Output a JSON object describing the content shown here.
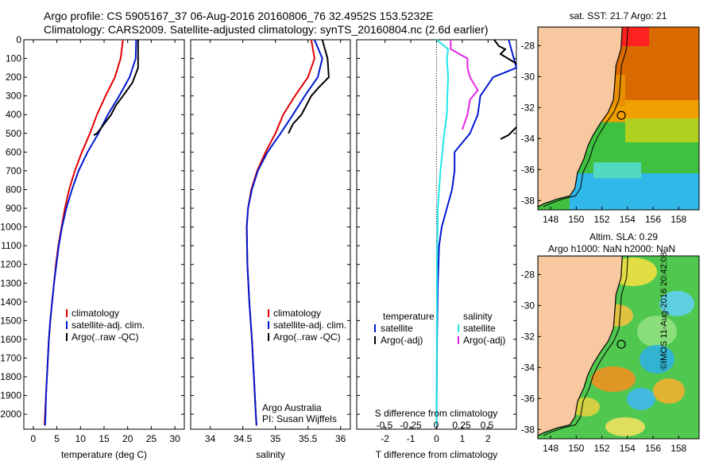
{
  "header": {
    "line1": "Argo profile: CS 5905167_37 06-Aug-2016 20160806_76 32.4952S 153.5232E",
    "line2": "Climatology: CARS2009. Satellite-adjusted climatology: synTS_20160804.nc (2.6d earlier)"
  },
  "colors": {
    "climatology": "#e00000",
    "satellite": "#0018d0",
    "argo": "#000000",
    "s_satellite": "#22e6e6",
    "s_argo": "#e626e6"
  },
  "shared_y": {
    "range": [
      0,
      2080
    ],
    "ticks": [
      0,
      100,
      200,
      300,
      400,
      500,
      600,
      700,
      800,
      900,
      1000,
      1100,
      1200,
      1300,
      1400,
      1500,
      1600,
      1700,
      1800,
      1900,
      2000
    ]
  },
  "chart_data": [
    {
      "type": "line",
      "xlabel": "temperature (deg C)",
      "xlim": [
        -2,
        32
      ],
      "xticks": [
        0,
        5,
        10,
        15,
        20,
        25,
        30
      ],
      "legend": [
        "climatology",
        "satellite-adj. clim.",
        "Argo(..raw -QC)"
      ],
      "series": [
        {
          "name": "climatology",
          "points": [
            [
              19,
              0
            ],
            [
              18.5,
              100
            ],
            [
              17.3,
              200
            ],
            [
              15.3,
              300
            ],
            [
              13.5,
              400
            ],
            [
              12,
              500
            ],
            [
              10.3,
              600
            ],
            [
              8.8,
              700
            ],
            [
              7.6,
              800
            ],
            [
              6.7,
              900
            ],
            [
              6,
              1000
            ],
            [
              5.3,
              1100
            ],
            [
              4.8,
              1200
            ],
            [
              4.4,
              1300
            ],
            [
              4,
              1400
            ],
            [
              3.6,
              1500
            ],
            [
              3.3,
              1600
            ],
            [
              3.1,
              1700
            ],
            [
              2.9,
              1800
            ],
            [
              2.7,
              1900
            ],
            [
              2.5,
              2000
            ],
            [
              2.4,
              2060
            ]
          ]
        },
        {
          "name": "satellite-adj. clim.",
          "points": [
            [
              21.8,
              0
            ],
            [
              21.7,
              100
            ],
            [
              20.4,
              200
            ],
            [
              18.2,
              300
            ],
            [
              15.8,
              400
            ],
            [
              13.8,
              500
            ],
            [
              11.5,
              600
            ],
            [
              9.6,
              700
            ],
            [
              8.2,
              800
            ],
            [
              7,
              900
            ],
            [
              6.1,
              1000
            ],
            [
              5.4,
              1100
            ],
            [
              4.9,
              1200
            ],
            [
              4.4,
              1300
            ],
            [
              4,
              1400
            ],
            [
              3.6,
              1500
            ],
            [
              3.3,
              1600
            ],
            [
              3.1,
              1700
            ],
            [
              2.9,
              1800
            ],
            [
              2.7,
              1900
            ],
            [
              2.6,
              2000
            ],
            [
              2.5,
              2060
            ]
          ]
        },
        {
          "name": "Argo(..raw -QC)",
          "points": [
            [
              22.2,
              0
            ],
            [
              22.2,
              150
            ],
            [
              21,
              230
            ],
            [
              19,
              300
            ],
            [
              17.5,
              350
            ],
            [
              16.5,
              400
            ],
            [
              15,
              450
            ],
            [
              13.5,
              500
            ],
            [
              12.8,
              510
            ]
          ]
        }
      ]
    },
    {
      "type": "line",
      "xlabel": "salinity",
      "xlim": [
        33.7,
        36.15
      ],
      "xticks": [
        34,
        34.5,
        35,
        35.5,
        36
      ],
      "legend": [
        "climatology",
        "satellite-adj. clim.",
        "Argo(..raw -QC)"
      ],
      "annotation": [
        "Argo Australia",
        "PI: Susan Wijffels"
      ],
      "series": [
        {
          "name": "climatology",
          "points": [
            [
              35.55,
              0
            ],
            [
              35.6,
              100
            ],
            [
              35.5,
              200
            ],
            [
              35.3,
              300
            ],
            [
              35.12,
              400
            ],
            [
              35,
              500
            ],
            [
              34.85,
              600
            ],
            [
              34.72,
              700
            ],
            [
              34.63,
              800
            ],
            [
              34.58,
              900
            ],
            [
              34.56,
              1000
            ],
            [
              34.57,
              1200
            ],
            [
              34.6,
              1400
            ],
            [
              34.64,
              1600
            ],
            [
              34.67,
              1800
            ],
            [
              34.7,
              2000
            ],
            [
              34.71,
              2060
            ]
          ]
        },
        {
          "name": "satellite-adj. clim.",
          "points": [
            [
              35.6,
              0
            ],
            [
              35.72,
              100
            ],
            [
              35.65,
              200
            ],
            [
              35.45,
              300
            ],
            [
              35.27,
              400
            ],
            [
              35.08,
              500
            ],
            [
              34.88,
              600
            ],
            [
              34.73,
              700
            ],
            [
              34.64,
              800
            ],
            [
              34.58,
              900
            ],
            [
              34.56,
              1000
            ],
            [
              34.57,
              1200
            ],
            [
              34.6,
              1400
            ],
            [
              34.64,
              1600
            ],
            [
              34.67,
              1800
            ],
            [
              34.7,
              2000
            ],
            [
              34.71,
              2060
            ]
          ]
        },
        {
          "name": "Argo(..raw -QC)",
          "points": [
            [
              35.72,
              0
            ],
            [
              35.8,
              100
            ],
            [
              35.82,
              200
            ],
            [
              35.65,
              260
            ],
            [
              35.55,
              300
            ],
            [
              35.4,
              400
            ],
            [
              35.27,
              450
            ],
            [
              35.2,
              500
            ]
          ]
        }
      ]
    },
    {
      "type": "line",
      "xlabel": "T difference from climatology",
      "x2label": "S difference from climatology",
      "xlim": [
        -3.1,
        3.1
      ],
      "xticks": [
        -2,
        -1,
        0,
        1,
        2
      ],
      "x2ticks": [
        "-0.5",
        "-0.25",
        "0",
        "0.25",
        "0.5"
      ],
      "legend_temperature_heading": "temperature",
      "legend_salinity_heading": "salinity",
      "legend_temperature": [
        "satellite",
        "Argo(-adj)"
      ],
      "legend_salinity": [
        "satellite",
        "Argo(-adj)"
      ],
      "series": [
        {
          "name": "temperature satellite",
          "points": [
            [
              2.8,
              0
            ],
            [
              3.1,
              150
            ],
            [
              2.2,
              200
            ],
            [
              1.7,
              300
            ],
            [
              1.6,
              400
            ],
            [
              1.3,
              500
            ],
            [
              0.7,
              600
            ],
            [
              0.7,
              700
            ],
            [
              0.6,
              800
            ],
            [
              0.4,
              900
            ],
            [
              0.2,
              1000
            ],
            [
              0.1,
              1100
            ],
            [
              0.05,
              1300
            ],
            [
              0.02,
              1600
            ],
            [
              0,
              2060
            ]
          ]
        },
        {
          "name": "salinity satellite",
          "points": [
            [
              0,
              0
            ],
            [
              0.45,
              50
            ],
            [
              0.4,
              100
            ],
            [
              0.45,
              200
            ],
            [
              0.42,
              300
            ],
            [
              0.4,
              400
            ],
            [
              0.3,
              500
            ],
            [
              0.15,
              700
            ],
            [
              0.05,
              900
            ],
            [
              0.02,
              1200
            ],
            [
              0,
              2060
            ]
          ]
        },
        {
          "name": "salinity Argo(-adj)",
          "points": [
            [
              0.55,
              0
            ],
            [
              0.55,
              50
            ],
            [
              1.2,
              100
            ],
            [
              1.2,
              150
            ],
            [
              1.3,
              200
            ],
            [
              1.6,
              270
            ],
            [
              1.3,
              320
            ],
            [
              1.2,
              400
            ],
            [
              1,
              480
            ]
          ]
        }
      ]
    }
  ],
  "maps": [
    {
      "title": "sat. SST: 21.7 Argo: 21",
      "xticks": [
        "148",
        "150",
        "152",
        "154",
        "156",
        "158"
      ],
      "yticks": [
        "-28",
        "-30",
        "-32",
        "-34",
        "-36",
        "-38"
      ],
      "type": "sst"
    },
    {
      "title1": "Altim. SLA: 0.29",
      "title2": "Argo h1000: NaN h2000: NaN",
      "xticks": [
        "148",
        "150",
        "152",
        "154",
        "156",
        "158"
      ],
      "yticks": [
        "-28",
        "-30",
        "-32",
        "-34",
        "-36",
        "-38"
      ],
      "type": "sla"
    }
  ],
  "credit": "©IMOS 11-Aug-2016 20:42:08"
}
